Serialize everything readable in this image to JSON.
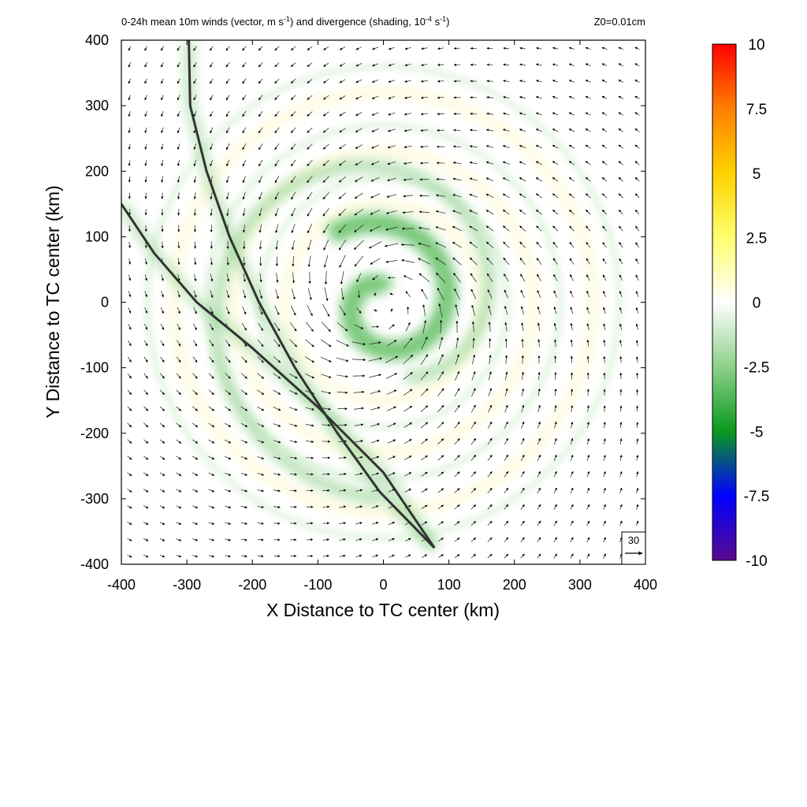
{
  "chart_data": {
    "type": "heatmap",
    "title_left": "0-24h mean 10m winds (vector, m s",
    "title_left_sup1": "-1",
    "title_left_mid": ") and divergence (shading, 10",
    "title_left_sup2": "-4",
    "title_left_unit": " s",
    "title_left_sup3": "-1",
    "title_left_end": ")",
    "title_right": "Z0=0.01cm",
    "xlabel": "X Distance to TC center (km)",
    "ylabel": "Y Distance to TC center (km)",
    "xlim": [
      -400,
      400
    ],
    "ylim": [
      -400,
      400
    ],
    "xticks": [
      -400,
      -300,
      -200,
      -100,
      0,
      100,
      200,
      300,
      400
    ],
    "yticks": [
      -400,
      -300,
      -200,
      -100,
      0,
      100,
      200,
      300,
      400
    ],
    "colorbar": {
      "ticks": [
        "10",
        "7.5",
        "5",
        "2.5",
        "0",
        "-2.5",
        "-5",
        "-7.5",
        "-10"
      ],
      "range": [
        -10,
        10
      ],
      "colors": [
        "#5a0a8c",
        "#0000ff",
        "#0a9a1e",
        "#8ed18a",
        "#ffffff",
        "#ffff6e",
        "#ffd200",
        "#ff7f00",
        "#ff0000"
      ]
    },
    "reference_vector": {
      "label": "30",
      "value": 30,
      "unit": "m s-1"
    },
    "vortex": {
      "center": [
        0,
        0
      ],
      "rotation": "counterclockwise",
      "max_wind_radius_km": 80
    },
    "convergence_bands": [
      {
        "name": "inner spiral",
        "r0": 20,
        "r1": 130,
        "theta0": 1.3,
        "turns": 1.15
      },
      {
        "name": "outer spiral",
        "r0": 120,
        "r1": 300,
        "theta0": 5.0,
        "turns": 0.95
      }
    ],
    "curves": [
      {
        "name": "curve-a",
        "points": [
          [
            -297,
            400
          ],
          [
            -295,
            300
          ],
          [
            -270,
            200
          ],
          [
            -235,
            100
          ],
          [
            -190,
            0
          ],
          [
            -135,
            -100
          ],
          [
            -70,
            -200
          ],
          [
            -5,
            -290
          ],
          [
            78,
            -375
          ]
        ]
      },
      {
        "name": "curve-b",
        "points": [
          [
            -400,
            150
          ],
          [
            -350,
            75
          ],
          [
            -285,
            0
          ],
          [
            -200,
            -70
          ],
          [
            -100,
            -160
          ],
          [
            0,
            -260
          ],
          [
            78,
            -375
          ]
        ]
      }
    ]
  }
}
